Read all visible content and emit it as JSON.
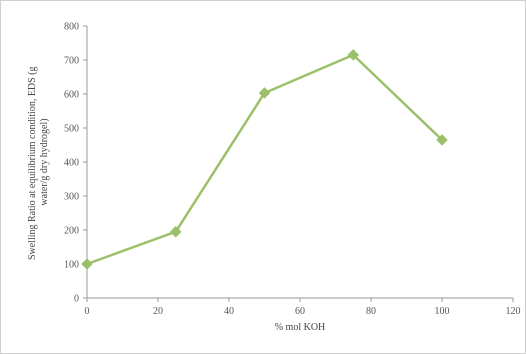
{
  "chart_data": {
    "type": "line",
    "title": "",
    "xlabel": "% mol KOH",
    "ylabel_lines": [
      "Swelling Ratio at equilibrium condition, EDS (g",
      "water/g dry hydrogel)"
    ],
    "xlim": [
      0,
      120
    ],
    "ylim": [
      0,
      800
    ],
    "x_ticks": [
      0,
      20,
      40,
      60,
      80,
      100,
      120
    ],
    "y_ticks": [
      0,
      100,
      200,
      300,
      400,
      500,
      600,
      700,
      800
    ],
    "grid": false,
    "legend": "none",
    "series": [
      {
        "x": [
          0,
          25,
          50,
          75,
          100
        ],
        "y": [
          100,
          195,
          603,
          715,
          465
        ],
        "color": "#9cc06a",
        "marker": "diamond"
      }
    ]
  }
}
